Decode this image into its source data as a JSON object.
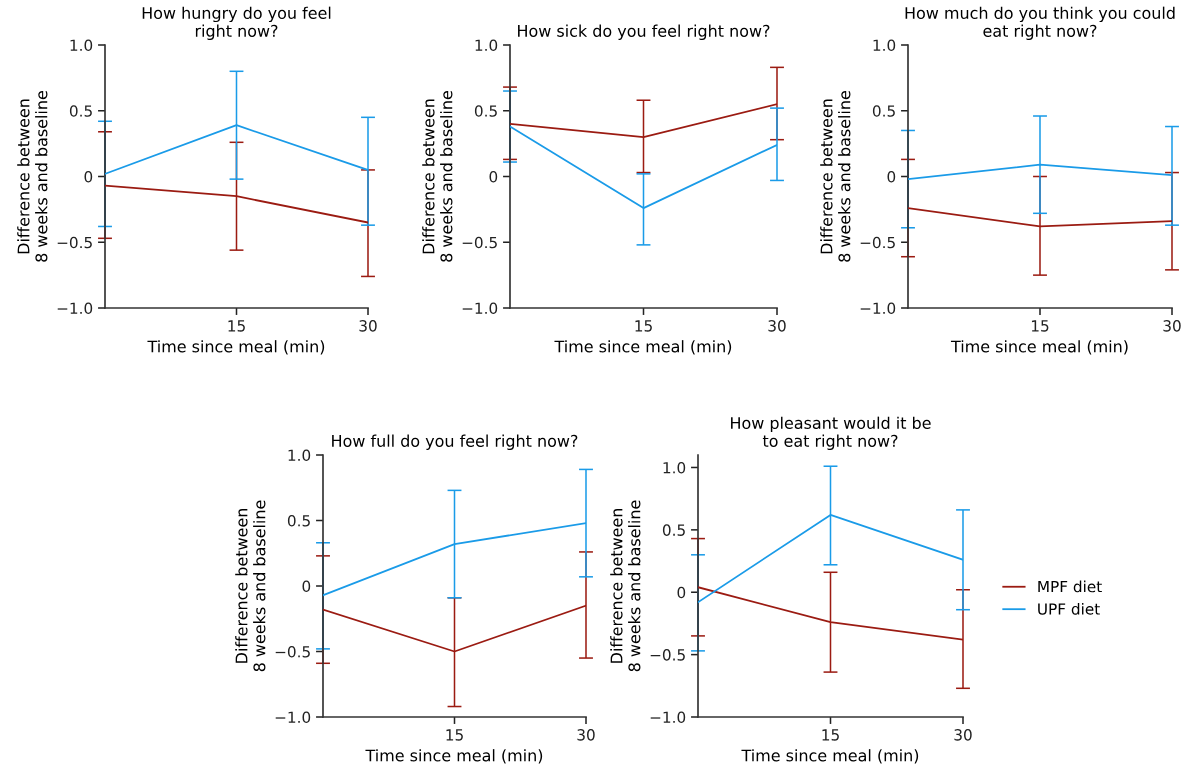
{
  "chart_data": [
    {
      "type": "line",
      "title": "How hungry do you feel\nright now?",
      "xlabel": "Time since meal (min)",
      "ylabel": "Difference between\n8 weeks and baseline",
      "x": [
        0,
        15,
        30
      ],
      "xlim": [
        0,
        30
      ],
      "xticks": [
        15,
        30
      ],
      "ylim": [
        -1.0,
        1.0
      ],
      "yticks": [
        {
          "value": -1.0,
          "label": "−1.0"
        },
        {
          "value": -0.5,
          "label": "−0.5"
        },
        0,
        0.5,
        {
          "value": 1.0,
          "label": "1.0"
        }
      ],
      "grid": false,
      "legend": false,
      "marker": "none",
      "line_style": "solid",
      "series": [
        {
          "color": "#9b1b12",
          "values": [
            -0.07,
            -0.15,
            -0.35
          ],
          "errors": [
            [
              -0.47,
              0.34
            ],
            [
              -0.56,
              0.26
            ],
            [
              -0.76,
              0.05
            ]
          ]
        },
        {
          "color": "#1a9be8",
          "values": [
            0.02,
            0.39,
            0.05
          ],
          "errors": [
            [
              -0.38,
              0.42
            ],
            [
              -0.02,
              0.8
            ],
            [
              -0.37,
              0.45
            ]
          ]
        }
      ]
    },
    {
      "type": "line",
      "title": "How sick do you feel right now?",
      "xlabel": "Time since meal (min)",
      "ylabel": "Difference between\n8 weeks and baseline",
      "x": [
        0,
        15,
        30
      ],
      "xlim": [
        0,
        30
      ],
      "xticks": [
        15,
        30
      ],
      "ylim": [
        -1.0,
        1.0
      ],
      "yticks": [
        {
          "value": -1.0,
          "label": "−1.0"
        },
        {
          "value": -0.5,
          "label": "−0.5"
        },
        0,
        0.5,
        {
          "value": 1.0,
          "label": "1.0"
        }
      ],
      "grid": false,
      "legend": false,
      "marker": "none",
      "line_style": "solid",
      "series": [
        {
          "color": "#9b1b12",
          "values": [
            0.4,
            0.3,
            0.55
          ],
          "errors": [
            [
              0.13,
              0.68
            ],
            [
              0.03,
              0.58
            ],
            [
              0.28,
              0.83
            ]
          ]
        },
        {
          "color": "#1a9be8",
          "values": [
            0.38,
            -0.24,
            0.24
          ],
          "errors": [
            [
              0.11,
              0.65
            ],
            [
              -0.52,
              0.02
            ],
            [
              -0.03,
              0.52
            ]
          ]
        }
      ]
    },
    {
      "type": "line",
      "title": "How much do you think you could\neat right now?",
      "xlabel": "Time since meal (min)",
      "ylabel": "Difference between\n8 weeks and baseline",
      "x": [
        0,
        15,
        30
      ],
      "xlim": [
        0,
        30
      ],
      "xticks": [
        15,
        30
      ],
      "ylim": [
        -1.0,
        1.0
      ],
      "yticks": [
        {
          "value": -1.0,
          "label": "−1.0"
        },
        {
          "value": -0.5,
          "label": "−0.5"
        },
        0,
        0.5,
        {
          "value": 1.0,
          "label": "1.0"
        }
      ],
      "grid": false,
      "legend": false,
      "marker": "none",
      "line_style": "solid",
      "series": [
        {
          "color": "#9b1b12",
          "values": [
            -0.24,
            -0.38,
            -0.34
          ],
          "errors": [
            [
              -0.61,
              0.13
            ],
            [
              -0.75,
              0.0
            ],
            [
              -0.71,
              0.03
            ]
          ]
        },
        {
          "color": "#1a9be8",
          "values": [
            -0.02,
            0.09,
            0.01
          ],
          "errors": [
            [
              -0.39,
              0.35
            ],
            [
              -0.28,
              0.46
            ],
            [
              -0.37,
              0.38
            ]
          ]
        }
      ]
    },
    {
      "type": "line",
      "title": "How full do you feel right now?",
      "xlabel": "Time since meal (min)",
      "ylabel": "Difference between\n8 weeks and baseline",
      "x": [
        0,
        15,
        30
      ],
      "xlim": [
        0,
        30
      ],
      "xticks": [
        15,
        30
      ],
      "ylim": [
        -1.0,
        1.0
      ],
      "yticks": [
        {
          "value": -1.0,
          "label": "−1.0"
        },
        {
          "value": -0.5,
          "label": "−0.5"
        },
        0,
        0.5,
        {
          "value": 1.0,
          "label": "1.0"
        }
      ],
      "grid": false,
      "legend": false,
      "marker": "none",
      "line_style": "solid",
      "series": [
        {
          "color": "#9b1b12",
          "values": [
            -0.18,
            -0.5,
            -0.15
          ],
          "errors": [
            [
              -0.59,
              0.23
            ],
            [
              -0.92,
              -0.09
            ],
            [
              -0.55,
              0.26
            ]
          ]
        },
        {
          "color": "#1a9be8",
          "values": [
            -0.07,
            0.32,
            0.48
          ],
          "errors": [
            [
              -0.48,
              0.33
            ],
            [
              -0.09,
              0.73
            ],
            [
              0.07,
              0.89
            ]
          ]
        }
      ]
    },
    {
      "type": "line",
      "title": "How pleasant would it be\nto eat right now?",
      "xlabel": "Time since meal (min)",
      "ylabel": "Difference between\n8 weeks and baseline",
      "x": [
        0,
        15,
        30
      ],
      "xlim": [
        0,
        30
      ],
      "xticks": [
        15,
        30
      ],
      "ylim": [
        -1.0,
        1.1
      ],
      "yticks": [
        {
          "value": -1.0,
          "label": "−1.0"
        },
        {
          "value": -0.5,
          "label": "−0.5"
        },
        0,
        0.5,
        {
          "value": 1.0,
          "label": "1.0"
        }
      ],
      "grid": false,
      "legend": "right",
      "marker": "none",
      "line_style": "solid",
      "series": [
        {
          "name": "MPF diet",
          "color": "#9b1b12",
          "values": [
            0.04,
            -0.24,
            -0.38
          ],
          "errors": [
            [
              -0.35,
              0.43
            ],
            [
              -0.64,
              0.16
            ],
            [
              -0.77,
              0.02
            ]
          ]
        },
        {
          "name": "UPF diet",
          "color": "#1a9be8",
          "values": [
            -0.08,
            0.62,
            0.26
          ],
          "errors": [
            [
              -0.47,
              0.3
            ],
            [
              0.22,
              1.01
            ],
            [
              -0.14,
              0.66
            ]
          ]
        }
      ]
    }
  ]
}
